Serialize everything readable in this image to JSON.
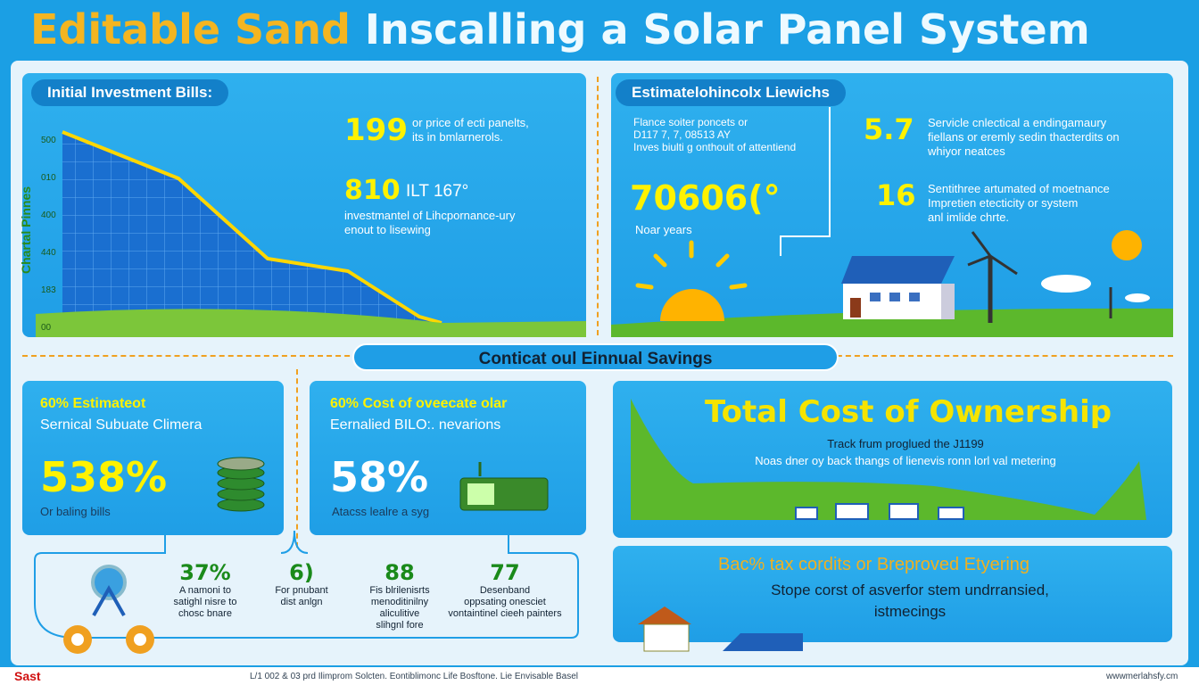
{
  "header": {
    "title_highlight": "Editable Sand",
    "title_rest": "Inscalling a Solar Panel System"
  },
  "investment": {
    "label": "Initial Investment Bills:",
    "axis_title": "Chartal Pinnes",
    "axis_ticks": [
      "500",
      "010",
      "400",
      "440",
      "183",
      "00"
    ],
    "stat1_value": "199",
    "stat1_lines": [
      "or price of ecti panelts,",
      "its in bmlarnerols."
    ],
    "stat2_value": "810",
    "stat2_suffix": "ILT 167°",
    "stat2_lines": [
      "investmantel of Lihcpornance-ury",
      "enout to lisewing"
    ]
  },
  "estimates": {
    "label": "Estimatelohincolx Liewichs",
    "intro_lines": [
      "Flance soiter poncets or",
      "D117 7, 7, 08513 AY",
      "Inves biulti g onthoult of attentiend"
    ],
    "big_value": "70606(°",
    "big_caption": "Noar years",
    "items": [
      {
        "value": "5.7",
        "lines": [
          "Servicle cnlectical a endingamaury",
          "fiellans or eremly sedin thacterdits on",
          "whiyor neatces"
        ]
      },
      {
        "value": "16",
        "lines": [
          "Sentithree artumated of moetnance",
          "Impretien etecticity or system",
          "anl imlide chrte."
        ]
      }
    ]
  },
  "savings_banner": "Conticat oul Einnual Savings",
  "cards": [
    {
      "line1": "60% Estimateot",
      "line2": "Sernical Subuate Climera",
      "value": "538%",
      "caption": "Or baling bills"
    },
    {
      "line1": "60% Cost of oveecate olar",
      "line2": "Eernalied BILO:. nevarions",
      "value": "58%",
      "caption": "Atacss lealre a syg"
    }
  ],
  "flow": [
    {
      "value": "37%",
      "lines": [
        "A namoni to",
        "satighl nisre to",
        "chosc bnare"
      ]
    },
    {
      "value": "6)",
      "lines": [
        "For pnubant",
        "dist anlgn"
      ]
    },
    {
      "value": "88",
      "lines": [
        "Fis blrilenisrts",
        "menoditinilny",
        "aliculitive",
        "slihgnl fore"
      ]
    },
    {
      "value": "77",
      "lines": [
        "Desenband",
        "oppsating onesciet",
        "vontaintinel cieeh painters"
      ]
    }
  ],
  "ownership": {
    "title": "Total Cost of Ownership",
    "lines": [
      "Track frum proglued the J1199",
      "Noas dner oy back thangs of lienevis ronn lorl val metering"
    ]
  },
  "tax": {
    "title": "Bac% tax cordits or Breproved Etyering",
    "lines": [
      "Stope corst of asverfor stem undrransied,",
      "istmecings"
    ]
  },
  "footer": {
    "logo": "Sast",
    "text": "L/1 002 & 03 prd Ilimprom Solcten. Eontiblimonc Life Bosftone. Lie Envisable Basel",
    "url": "wwwmerlahsfy.cm"
  }
}
